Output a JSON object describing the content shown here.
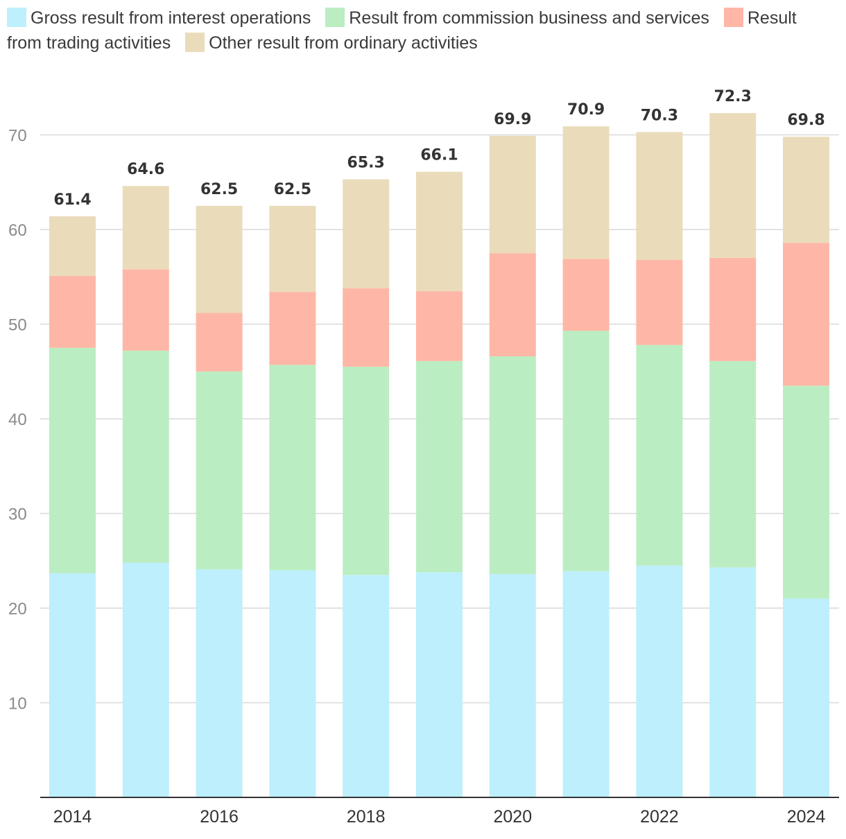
{
  "chart_data": {
    "type": "bar",
    "stacked": true,
    "title": "",
    "xlabel": "",
    "ylabel": "",
    "ylim": [
      0,
      73
    ],
    "yticks": [
      10,
      20,
      30,
      40,
      50,
      60,
      70
    ],
    "categories": [
      "2014",
      "2015",
      "2016",
      "2017",
      "2018",
      "2019",
      "2020",
      "2021",
      "2022",
      "2023",
      "2024"
    ],
    "xtick_labels": [
      "2014",
      "",
      "2016",
      "",
      "2018",
      "",
      "2020",
      "",
      "2022",
      "",
      "2024"
    ],
    "series": [
      {
        "name": "Gross result from interest operations",
        "color": "#BDEFFC",
        "values": [
          23.7,
          24.8,
          24.1,
          24.0,
          23.5,
          23.8,
          23.6,
          23.9,
          24.5,
          24.3,
          21.0
        ]
      },
      {
        "name": "Result from commission business and services",
        "color": "#BBEDC2",
        "values": [
          23.8,
          22.4,
          20.9,
          21.7,
          22.0,
          22.3,
          23.0,
          25.4,
          23.3,
          21.8,
          22.5
        ]
      },
      {
        "name": "Result from trading activities",
        "color": "#FEB7A6",
        "values": [
          7.6,
          8.6,
          6.2,
          7.7,
          8.3,
          7.4,
          10.9,
          7.6,
          9.0,
          10.9,
          15.1
        ]
      },
      {
        "name": "Other result from ordinary activities",
        "color": "#EADCBB",
        "values": [
          6.3,
          8.8,
          11.3,
          9.1,
          11.5,
          12.6,
          12.4,
          14.0,
          13.5,
          15.3,
          11.2
        ]
      }
    ],
    "totals": [
      "61.4",
      "64.6",
      "62.5",
      "62.5",
      "65.3",
      "66.1",
      "69.9",
      "70.9",
      "70.3",
      "72.3",
      "69.8"
    ],
    "legend_position": "top",
    "grid": true
  }
}
